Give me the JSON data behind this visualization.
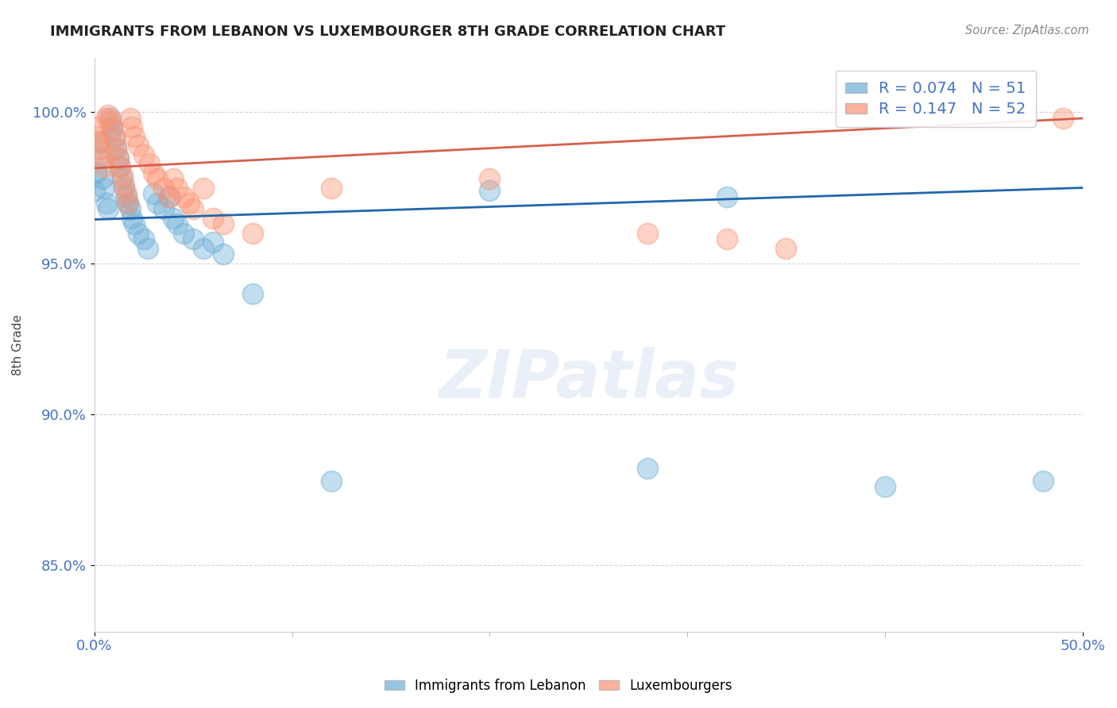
{
  "title": "IMMIGRANTS FROM LEBANON VS LUXEMBOURGER 8TH GRADE CORRELATION CHART",
  "source_text": "Source: ZipAtlas.com",
  "ylabel": "8th Grade",
  "xlim": [
    0.0,
    0.5
  ],
  "ylim": [
    0.828,
    1.018
  ],
  "xticks": [
    0.0,
    0.5
  ],
  "xticklabels": [
    "0.0%",
    "50.0%"
  ],
  "yticks": [
    0.85,
    0.9,
    0.95,
    1.0
  ],
  "yticklabels": [
    "85.0%",
    "90.0%",
    "95.0%",
    "100.0%"
  ],
  "blue_color": "#6baed6",
  "pink_color": "#fc9272",
  "trend_blue_color": "#2166ac",
  "trend_pink_color": "#d6604d",
  "R_blue": 0.074,
  "N_blue": 51,
  "R_pink": 0.147,
  "N_pink": 52,
  "legend_label_blue": "Immigrants from Lebanon",
  "legend_label_pink": "Luxembourgers",
  "watermark": "ZIPatlas",
  "blue_scatter_x": [
    0.0,
    0.001,
    0.002,
    0.003,
    0.004,
    0.005,
    0.006,
    0.007,
    0.008,
    0.009,
    0.01,
    0.011,
    0.012,
    0.013,
    0.014,
    0.015,
    0.016,
    0.017,
    0.018,
    0.019,
    0.02,
    0.022,
    0.025,
    0.027,
    0.03,
    0.032,
    0.035,
    0.038,
    0.04,
    0.042,
    0.045,
    0.05,
    0.055,
    0.06,
    0.065,
    0.08,
    0.12,
    0.2,
    0.28,
    0.32,
    0.4,
    0.48
  ],
  "blue_scatter_y": [
    0.974,
    0.98,
    0.985,
    0.99,
    0.978,
    0.975,
    0.97,
    0.968,
    0.998,
    0.995,
    0.992,
    0.988,
    0.985,
    0.982,
    0.978,
    0.975,
    0.972,
    0.97,
    0.968,
    0.965,
    0.963,
    0.96,
    0.958,
    0.955,
    0.973,
    0.97,
    0.968,
    0.972,
    0.965,
    0.963,
    0.96,
    0.958,
    0.955,
    0.957,
    0.953,
    0.94,
    0.878,
    0.974,
    0.882,
    0.972,
    0.876,
    0.878
  ],
  "pink_scatter_x": [
    0.0,
    0.001,
    0.002,
    0.003,
    0.004,
    0.005,
    0.006,
    0.007,
    0.008,
    0.009,
    0.01,
    0.011,
    0.012,
    0.013,
    0.014,
    0.015,
    0.016,
    0.017,
    0.018,
    0.019,
    0.02,
    0.022,
    0.025,
    0.028,
    0.03,
    0.032,
    0.035,
    0.038,
    0.04,
    0.042,
    0.045,
    0.048,
    0.05,
    0.055,
    0.06,
    0.065,
    0.08,
    0.12,
    0.2,
    0.28,
    0.32,
    0.35,
    0.49
  ],
  "pink_scatter_y": [
    0.995,
    0.992,
    0.99,
    0.988,
    0.985,
    0.982,
    0.998,
    0.999,
    0.997,
    0.994,
    0.991,
    0.988,
    0.985,
    0.982,
    0.979,
    0.976,
    0.973,
    0.97,
    0.998,
    0.995,
    0.992,
    0.989,
    0.986,
    0.983,
    0.98,
    0.978,
    0.975,
    0.972,
    0.978,
    0.975,
    0.972,
    0.97,
    0.968,
    0.975,
    0.965,
    0.963,
    0.96,
    0.975,
    0.978,
    0.96,
    0.958,
    0.955,
    0.998
  ],
  "trend_blue_x0": 0.0,
  "trend_blue_y0": 0.9645,
  "trend_blue_x1": 0.5,
  "trend_blue_y1": 0.975,
  "trend_pink_x0": 0.0,
  "trend_pink_y0": 0.9815,
  "trend_pink_x1": 0.5,
  "trend_pink_y1": 0.998,
  "axis_tick_color": "#4472c4",
  "grid_color": "#aaaaaa",
  "legend_R_color": "#4472c4",
  "legend_N_color": "#4472c4"
}
